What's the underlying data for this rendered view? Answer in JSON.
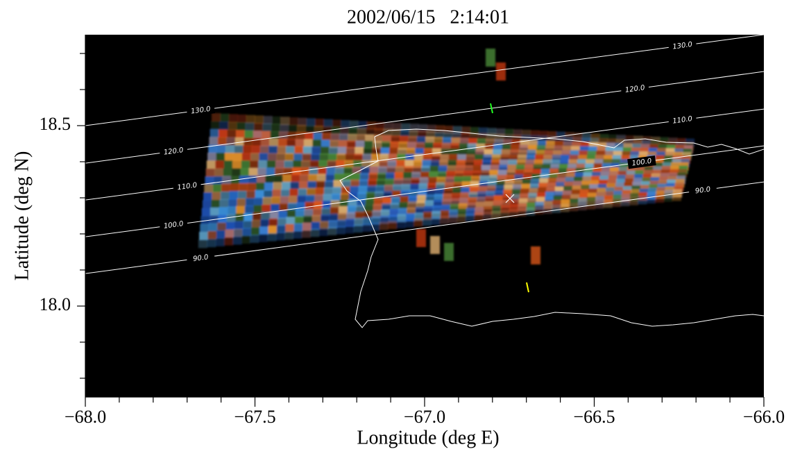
{
  "chart_data": {
    "type": "map",
    "title": "2002/06/15   2:14:01",
    "x_label": "Longitude (deg E)",
    "y_label": "Latitude (deg N)",
    "xlim": [
      -68,
      -66
    ],
    "ylim": [
      17.748,
      18.752
    ],
    "xticks": [
      {
        "value": -68,
        "label": "−68.0"
      },
      {
        "value": -67.5,
        "label": "−67.5"
      },
      {
        "value": -67,
        "label": "−67.0"
      },
      {
        "value": -66.5,
        "label": "−66.5"
      },
      {
        "value": -66,
        "label": "−66.0"
      }
    ],
    "xminorticks": [
      -67.9,
      -67.8,
      -67.7,
      -67.6,
      -67.4,
      -67.3,
      -67.2,
      -67.1,
      -66.9,
      -66.8,
      -66.7,
      -66.6,
      -66.4,
      -66.3,
      -66.2,
      -66.1
    ],
    "yticks": [
      {
        "value": 18,
        "label": "18.0"
      },
      18.5
    ],
    "yminorticks": [
      17.8,
      17.9,
      18.1,
      18.2,
      18.3,
      18.4,
      18.6,
      18.7
    ],
    "contours": [
      {
        "level": {
          "value": 130,
          "label": "130.0"
        },
        "x": [
          -68,
          -66
        ],
        "y": [
          18.5,
          18.752
        ]
      },
      {
        "level": {
          "value": 120,
          "label": "120.0"
        },
        "x": [
          -68,
          -66
        ],
        "y": [
          18.396,
          18.65
        ]
      },
      {
        "level": {
          "value": 110,
          "label": "110.0"
        },
        "x": [
          -68,
          -66
        ],
        "y": [
          18.294,
          18.546
        ]
      },
      {
        "level": {
          "value": 100,
          "label": "100.0"
        },
        "x": [
          -68,
          -66
        ],
        "y": [
          18.192,
          18.444
        ]
      },
      {
        "level": {
          "value": 90,
          "label": "90.0"
        },
        "x": [
          -68,
          -66
        ],
        "y": [
          18.09,
          18.344
        ]
      }
    ]
  }
}
